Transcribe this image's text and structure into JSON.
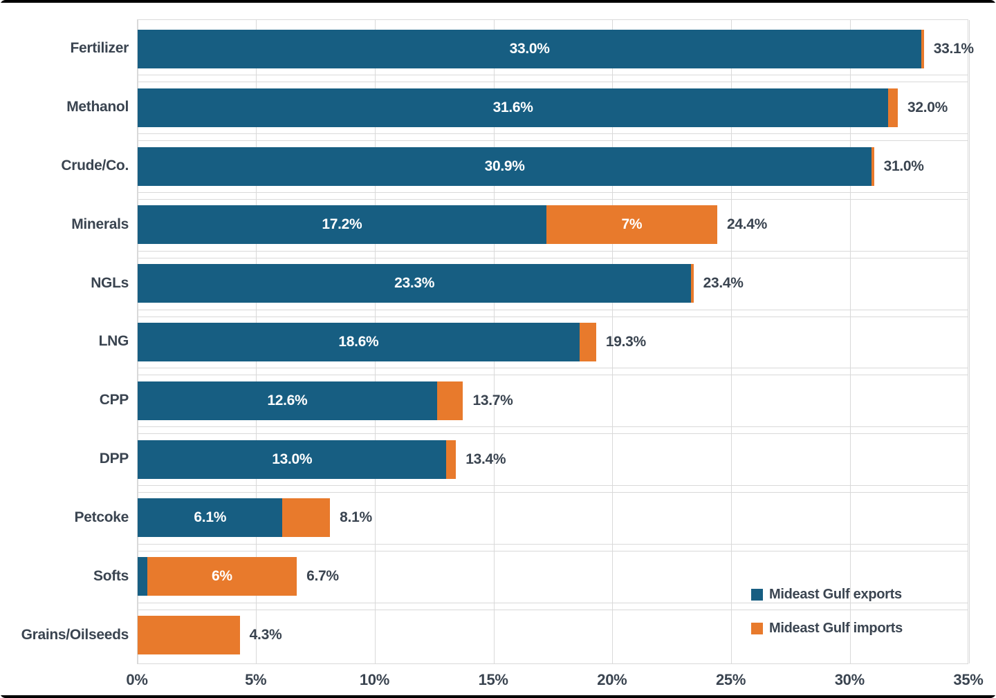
{
  "chart_data": {
    "type": "bar",
    "orientation": "horizontal",
    "stacked": true,
    "categories": [
      "Fertilizer",
      "Methanol",
      "Crude/Co.",
      "Minerals",
      "NGLs",
      "LNG",
      "CPP",
      "DPP",
      "Petcoke",
      "Softs",
      "Grains/Oilseeds"
    ],
    "series": [
      {
        "name": "Mideast Gulf exports",
        "values": [
          33.0,
          31.6,
          30.9,
          17.2,
          23.3,
          18.6,
          12.6,
          13.0,
          6.1,
          0.4,
          0.0
        ]
      },
      {
        "name": "Mideast Gulf imports",
        "values": [
          0.1,
          0.4,
          0.1,
          7.2,
          0.1,
          0.7,
          1.1,
          0.4,
          2.0,
          6.3,
          4.3
        ]
      }
    ],
    "segment_labels": {
      "exports": [
        "33.0%",
        "31.6%",
        "30.9%",
        "17.2%",
        "23.3%",
        "18.6%",
        "12.6%",
        "13.0%",
        "6.1%",
        "",
        ""
      ],
      "imports": [
        "",
        "",
        "",
        "7%",
        "",
        "",
        "",
        "",
        "",
        "6%",
        ""
      ]
    },
    "total_labels": [
      "33.1%",
      "32.0%",
      "31.0%",
      "24.4%",
      "23.4%",
      "19.3%",
      "13.7%",
      "13.4%",
      "8.1%",
      "6.7%",
      "4.3%"
    ],
    "xlabel": "",
    "ylabel": "",
    "xlim": [
      0,
      35
    ],
    "x_ticks": [
      "0%",
      "5%",
      "10%",
      "15%",
      "20%",
      "25%",
      "30%",
      "35%"
    ],
    "grid": "vertical-major-plus-row-separators",
    "legend_position": "inside-bottom-right"
  },
  "legend": {
    "items": [
      {
        "label": "Mideast Gulf exports",
        "color": "#175e82"
      },
      {
        "label": "Mideast Gulf imports",
        "color": "#e87a2c"
      }
    ]
  },
  "colors": {
    "exports_bar": "#175e82",
    "imports_bar": "#e87a2c",
    "text_dark": "#3a4450",
    "inside_label": "#ffffff",
    "gridline": "#d9d9d9",
    "frame": "#000000",
    "background": "#ffffff"
  }
}
